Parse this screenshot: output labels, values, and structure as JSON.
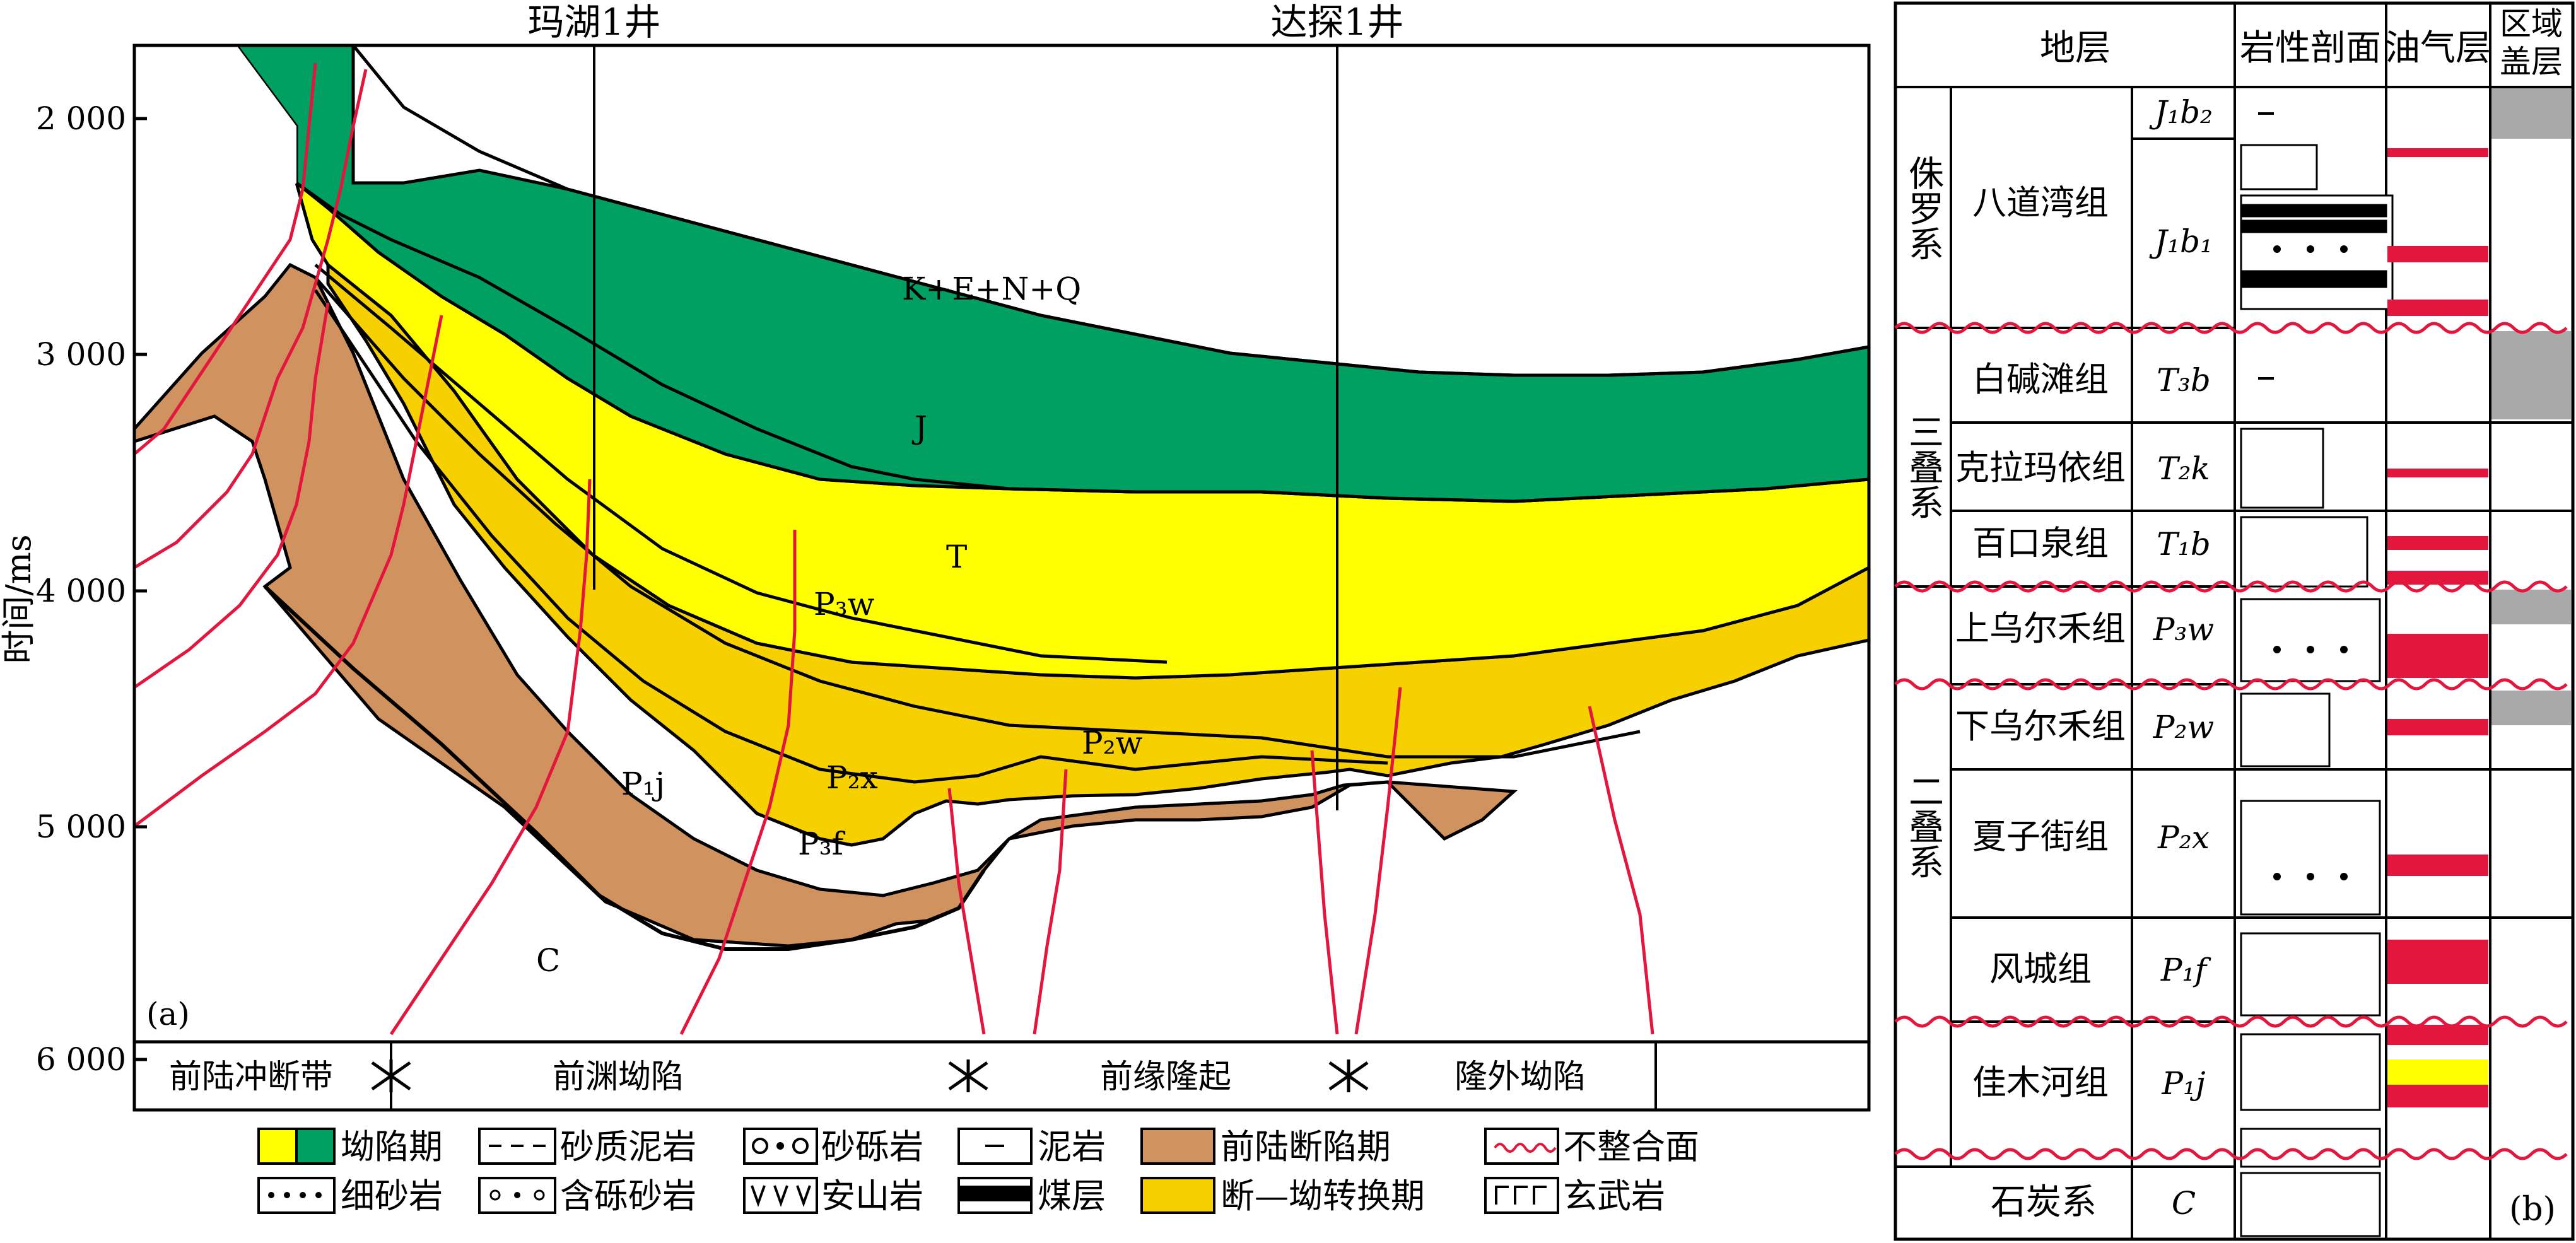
{
  "section": {
    "panel_label": "(a)",
    "y_axis_label": "时间/ms",
    "y_ticks": [
      "2 000",
      "3 000",
      "4 000",
      "5 000",
      "6 000"
    ],
    "wells": [
      "玛湖1井",
      "达探1井"
    ],
    "layer_labels": {
      "kenq": "K+E+N+Q",
      "j": "J",
      "t": "T",
      "p3w": "P₃w",
      "p2w": "P₂w",
      "p2x": "P₂x",
      "p3f": "P₃f",
      "p1j": "P₁j",
      "c": "C"
    },
    "zones": [
      "前陆冲断带",
      "前渊坳陷",
      "前缘隆起",
      "隆外坳陷"
    ]
  },
  "legend": {
    "items": [
      "坳陷期",
      "砂质泥岩",
      "砂砾岩",
      "泥岩",
      "前陆断陷期",
      "不整合面",
      "细砂岩",
      "含砾砂岩",
      "安山岩",
      "煤层",
      "断—坳转换期",
      "玄武岩"
    ]
  },
  "colors": {
    "green": "#00a062",
    "yellow": "#ffff00",
    "gold": "#f7d000",
    "brown": "#d0925e",
    "red": "#e3163d",
    "gray": "#a9a9a9"
  },
  "strat_column": {
    "headers": [
      "地层",
      "岩性剖面",
      "油气层",
      "区域盖层"
    ],
    "systems": [
      "侏罗系",
      "三叠系",
      "二叠系",
      "石炭系"
    ],
    "formations": [
      "八道湾组",
      "白碱滩组",
      "克拉玛依组",
      "百口泉组",
      "上乌尔禾组",
      "下乌尔禾组",
      "夏子街组",
      "风城组",
      "佳木河组"
    ],
    "codes": [
      "J₁b₂",
      "J₁b₁",
      "T₃b",
      "T₂k",
      "T₁b",
      "P₃w",
      "P₂w",
      "P₂x",
      "P₁f",
      "P₁j",
      "C"
    ],
    "panel_label": "(b)"
  }
}
